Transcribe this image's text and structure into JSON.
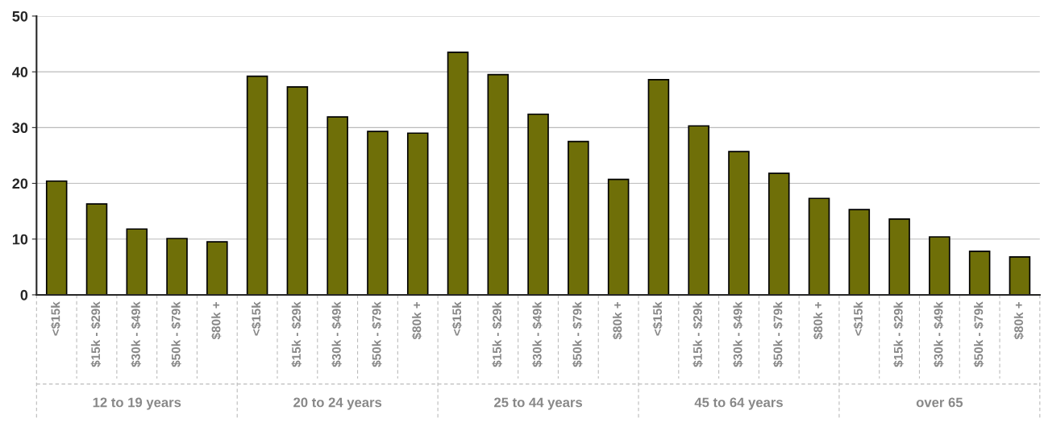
{
  "chart_data": {
    "type": "bar",
    "categories": [
      "<$15k",
      "$15k - $29k",
      "$30k - $49k",
      "$50k - $79k",
      "$80k +",
      "<$15k",
      "$15k - $29k",
      "$30k - $49k",
      "$50k - $79k",
      "$80k +",
      "<$15k",
      "$15k - $29k",
      "$30k - $49k",
      "$50k - $79k",
      "$80k +",
      "<$15k",
      "$15k - $29k",
      "$30k - $49k",
      "$50k - $79k",
      "$80k +",
      "<$15k",
      "$15k - $29k",
      "$30k - $49k",
      "$50k - $79k",
      "$80k +"
    ],
    "values": [
      20.4,
      16.3,
      11.8,
      10.1,
      9.5,
      39.2,
      37.3,
      31.9,
      29.3,
      29.0,
      43.5,
      39.5,
      32.4,
      27.5,
      20.7,
      38.6,
      30.3,
      25.7,
      21.8,
      17.3,
      15.3,
      13.6,
      10.4,
      7.8,
      6.8
    ],
    "color": "#6f6f08",
    "annotations": [
      "12 to 19 years",
      "20 to 24 years",
      "25 to 44 years",
      "45 to 64 years",
      "over 65"
    ],
    "ylim": [
      0,
      50
    ],
    "yticks": [
      0,
      10,
      20,
      30,
      40,
      50
    ],
    "grid": "y"
  }
}
